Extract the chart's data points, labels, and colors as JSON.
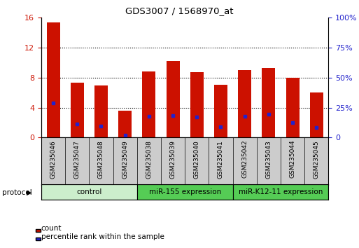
{
  "title": "GDS3007 / 1568970_at",
  "samples": [
    "GSM235046",
    "GSM235047",
    "GSM235048",
    "GSM235049",
    "GSM235038",
    "GSM235039",
    "GSM235040",
    "GSM235041",
    "GSM235042",
    "GSM235043",
    "GSM235044",
    "GSM235045"
  ],
  "count_values": [
    15.3,
    7.3,
    6.9,
    3.6,
    8.8,
    10.2,
    8.7,
    7.0,
    9.0,
    9.3,
    8.0,
    6.0
  ],
  "percentile_values": [
    4.6,
    1.8,
    1.5,
    0.35,
    2.85,
    2.9,
    2.7,
    1.4,
    2.85,
    3.15,
    2.0,
    1.35
  ],
  "bar_color": "#CC1100",
  "percentile_color": "#2222CC",
  "groups": [
    {
      "label": "control",
      "start": 0,
      "end": 3,
      "bg": "#cceecc"
    },
    {
      "label": "miR-155 expression",
      "start": 4,
      "end": 7,
      "bg": "#55cc55"
    },
    {
      "label": "miR-K12-11 expression",
      "start": 8,
      "end": 11,
      "bg": "#55cc55"
    }
  ],
  "ylim_left": [
    0,
    16
  ],
  "ylim_right": [
    0,
    100
  ],
  "yticks_left": [
    0,
    4,
    8,
    12,
    16
  ],
  "yticks_right": [
    0,
    25,
    50,
    75,
    100
  ],
  "left_tick_color": "#CC1100",
  "right_tick_color": "#2222CC",
  "bar_width": 0.55,
  "legend_count_label": "count",
  "legend_pct_label": "percentile rank within the sample",
  "protocol_label": "protocol",
  "tick_bg": "#cccccc",
  "plot_border_color": "#000000"
}
